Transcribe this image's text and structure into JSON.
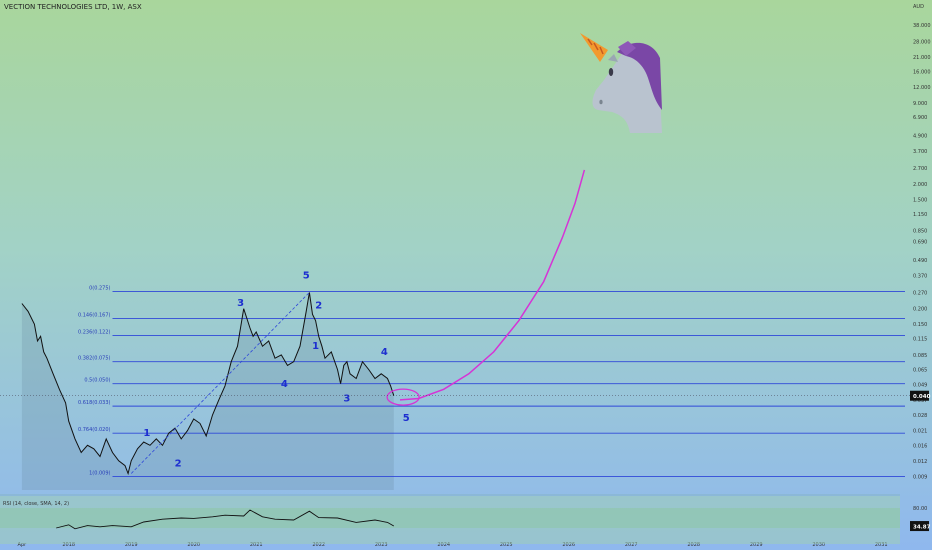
{
  "header": {
    "title": "VECTION TECHNOLOGIES LTD, 1W, ASX"
  },
  "chart_data": {
    "type": "line",
    "title": "VECTION TECHNOLOGIES LTD, 1W, ASX",
    "scale": "log",
    "currency": "AUD",
    "ylim": [
      0.007,
      50
    ],
    "y_ticks": [
      "38.000",
      "28.000",
      "21.000",
      "16.000",
      "12.000",
      "9.000",
      "6.900",
      "4.900",
      "3.700",
      "2.700",
      "2.000",
      "1.500",
      "1.150",
      "0.850",
      "0.690",
      "0.490",
      "0.370",
      "0.270",
      "0.200",
      "0.150",
      "0.115",
      "0.085",
      "0.065",
      "0.049",
      "0.037",
      "0.028",
      "0.021",
      "0.016",
      "0.012",
      "0.009"
    ],
    "y_tick_values": [
      38,
      28,
      21,
      16,
      12,
      9,
      6.9,
      4.9,
      3.7,
      2.7,
      2,
      1.5,
      1.15,
      0.85,
      0.69,
      0.49,
      0.37,
      0.27,
      0.2,
      0.15,
      0.115,
      0.085,
      0.065,
      0.049,
      0.037,
      0.028,
      0.021,
      0.016,
      0.012,
      0.009
    ],
    "x_ticks": [
      "Apr",
      "2018",
      "2019",
      "2020",
      "2021",
      "2022",
      "2023",
      "2024",
      "2025",
      "2026",
      "2027",
      "2028",
      "2029",
      "2030",
      "2031"
    ],
    "x_tick_values": [
      2017.25,
      2018,
      2019,
      2020,
      2021,
      2022,
      2023,
      2024,
      2025,
      2026,
      2027,
      2028,
      2029,
      2030,
      2031
    ],
    "xlim": [
      2016.9,
      2031.3
    ],
    "last_price": "0.040",
    "series": [
      {
        "name": "Price",
        "x": [
          2017.25,
          2017.35,
          2017.45,
          2017.5,
          2017.55,
          2017.6,
          2017.65,
          2017.75,
          2017.85,
          2017.95,
          2018.0,
          2018.1,
          2018.2,
          2018.3,
          2018.4,
          2018.5,
          2018.6,
          2018.7,
          2018.8,
          2018.9,
          2018.95,
          2019.0,
          2019.1,
          2019.2,
          2019.3,
          2019.4,
          2019.5,
          2019.6,
          2019.7,
          2019.8,
          2019.9,
          2020.0,
          2020.1,
          2020.2,
          2020.3,
          2020.4,
          2020.5,
          2020.55,
          2020.6,
          2020.7,
          2020.8,
          2020.9,
          2020.95,
          2021.0,
          2021.1,
          2021.2,
          2021.3,
          2021.4,
          2021.5,
          2021.6,
          2021.7,
          2021.8,
          2021.85,
          2021.9,
          2021.95,
          2022.0,
          2022.05,
          2022.1,
          2022.2,
          2022.3,
          2022.35,
          2022.4,
          2022.45,
          2022.5,
          2022.6,
          2022.7,
          2022.8,
          2022.9,
          2023.0,
          2023.1,
          2023.15,
          2023.2
        ],
        "y": [
          0.22,
          0.19,
          0.15,
          0.11,
          0.12,
          0.09,
          0.08,
          0.06,
          0.045,
          0.035,
          0.025,
          0.018,
          0.014,
          0.016,
          0.015,
          0.013,
          0.018,
          0.014,
          0.012,
          0.011,
          0.0095,
          0.012,
          0.015,
          0.017,
          0.016,
          0.018,
          0.016,
          0.02,
          0.022,
          0.018,
          0.021,
          0.026,
          0.024,
          0.019,
          0.028,
          0.037,
          0.048,
          0.06,
          0.075,
          0.1,
          0.2,
          0.14,
          0.12,
          0.13,
          0.1,
          0.11,
          0.08,
          0.085,
          0.07,
          0.075,
          0.1,
          0.19,
          0.27,
          0.18,
          0.16,
          0.12,
          0.1,
          0.08,
          0.09,
          0.065,
          0.05,
          0.07,
          0.075,
          0.06,
          0.055,
          0.075,
          0.065,
          0.055,
          0.06,
          0.055,
          0.048,
          0.04
        ]
      },
      {
        "name": "Projection",
        "x": [
          2023.3,
          2023.6,
          2024.0,
          2024.4,
          2024.8,
          2025.2,
          2025.6,
          2025.9,
          2026.1,
          2026.25
        ],
        "y": [
          0.037,
          0.038,
          0.045,
          0.06,
          0.09,
          0.16,
          0.33,
          0.75,
          1.4,
          2.6
        ]
      },
      {
        "name": "Wave line",
        "x": [
          2019.0,
          2021.85
        ],
        "y": [
          0.0095,
          0.27
        ]
      }
    ],
    "fib_levels": [
      {
        "label": "0(0.275)",
        "value": 0.275
      },
      {
        "label": "0.146(0.167)",
        "value": 0.167
      },
      {
        "label": "0.236(0.122)",
        "value": 0.122
      },
      {
        "label": "0.382(0.075)",
        "value": 0.075
      },
      {
        "label": "0.5(0.050)",
        "value": 0.05
      },
      {
        "label": "0.618(0.033)",
        "value": 0.033
      },
      {
        "label": "0.764(0.020)",
        "value": 0.02
      },
      {
        "label": "1(0.009)",
        "value": 0.009
      }
    ],
    "wave_labels": [
      {
        "text": "1",
        "x": 2019.25,
        "y": 0.019
      },
      {
        "text": "2",
        "x": 2019.75,
        "y": 0.0108
      },
      {
        "text": "3",
        "x": 2020.75,
        "y": 0.21
      },
      {
        "text": "5",
        "x": 2021.8,
        "y": 0.35
      },
      {
        "text": "2",
        "x": 2022.0,
        "y": 0.2
      },
      {
        "text": "1",
        "x": 2021.95,
        "y": 0.095
      },
      {
        "text": "4",
        "x": 2021.45,
        "y": 0.047
      },
      {
        "text": "3",
        "x": 2022.45,
        "y": 0.036
      },
      {
        "text": "4",
        "x": 2023.05,
        "y": 0.085
      },
      {
        "text": "5",
        "x": 2023.4,
        "y": 0.025
      }
    ],
    "rsi": {
      "label": "RSI (14, close, SMA, 14, 2)",
      "ticks": [
        "80.00",
        "34.87"
      ],
      "value": "34.87",
      "x": [
        2017.8,
        2018.0,
        2018.1,
        2018.3,
        2018.5,
        2018.7,
        2019.0,
        2019.2,
        2019.5,
        2019.8,
        2020.0,
        2020.3,
        2020.5,
        2020.8,
        2020.9,
        2021.1,
        2021.3,
        2021.6,
        2021.85,
        2022.0,
        2022.3,
        2022.6,
        2022.9,
        2023.1,
        2023.2
      ],
      "y": [
        30,
        38,
        28,
        36,
        33,
        36,
        33,
        45,
        52,
        55,
        54,
        58,
        62,
        60,
        75,
        58,
        52,
        50,
        72,
        56,
        55,
        44,
        50,
        44,
        35
      ]
    },
    "legend": "none",
    "grid": false
  }
}
